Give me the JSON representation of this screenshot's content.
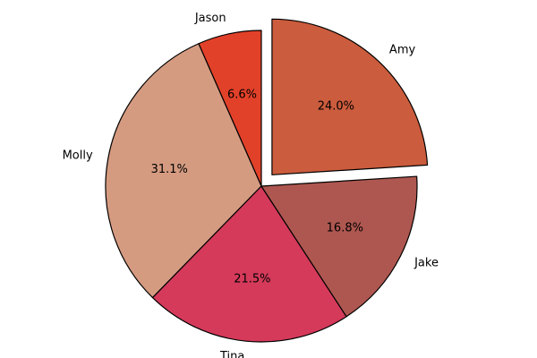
{
  "chart_data": {
    "type": "pie",
    "title": "",
    "start_angle_deg": 90,
    "direction": "counterclockwise",
    "slices": [
      {
        "label": "Jason",
        "value": 6.6,
        "pct_label": "6.6%",
        "color": "#e24129",
        "exploded": false
      },
      {
        "label": "Molly",
        "value": 31.1,
        "pct_label": "31.1%",
        "color": "#d59b81",
        "exploded": false
      },
      {
        "label": "Tina",
        "value": 21.5,
        "pct_label": "21.5%",
        "color": "#d53a5a",
        "exploded": false
      },
      {
        "label": "Jake",
        "value": 16.8,
        "pct_label": "16.8%",
        "color": "#ae5750",
        "exploded": false
      },
      {
        "label": "Amy",
        "value": 24.0,
        "pct_label": "24.0%",
        "color": "#cb5c3d",
        "exploded": true
      }
    ]
  }
}
